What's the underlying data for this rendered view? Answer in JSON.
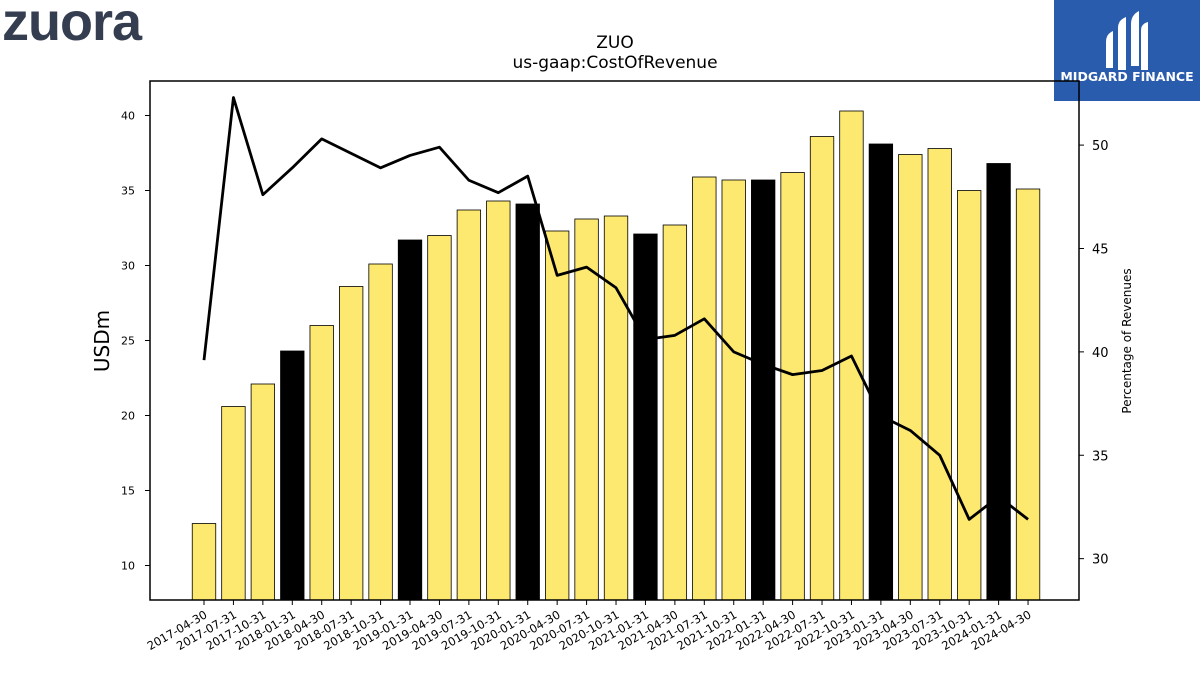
{
  "logo": {
    "text": "zuora",
    "color": "#343e50"
  },
  "brand": {
    "name": "MIDGARD FINANCE",
    "background": "#2a5cad",
    "icon": "midgard-m-icon"
  },
  "colors": {
    "bar_quarter": "#fde970",
    "bar_year_end": "#000000",
    "line": "#000000",
    "edge": "#000000"
  },
  "chart_data": {
    "type": "bar",
    "title": "ZUO",
    "subtitle": "us-gaap:CostOfRevenue",
    "ylabel": "USDm",
    "y2label": "Percentage of Revenues",
    "ylim": [
      7.7,
      42.3
    ],
    "y2lim": [
      28.0,
      53.1
    ],
    "yticks": [
      10,
      15,
      20,
      25,
      30,
      35,
      40
    ],
    "y2ticks": [
      30,
      35,
      40,
      45,
      50
    ],
    "grid": false,
    "categories": [
      "2017-04-30",
      "2017-07-31",
      "2017-10-31",
      "2018-01-31",
      "2018-04-30",
      "2018-07-31",
      "2018-10-31",
      "2019-01-31",
      "2019-04-30",
      "2019-07-31",
      "2019-10-31",
      "2020-01-31",
      "2020-04-30",
      "2020-07-31",
      "2020-10-31",
      "2021-01-31",
      "2021-04-30",
      "2021-07-31",
      "2021-10-31",
      "2022-01-31",
      "2022-04-30",
      "2022-07-31",
      "2022-10-31",
      "2023-01-31",
      "2023-04-30",
      "2023-07-31",
      "2023-10-31",
      "2024-01-31",
      "2024-04-30"
    ],
    "values": [
      12.8,
      20.6,
      22.1,
      24.3,
      26.0,
      28.6,
      30.1,
      31.7,
      32.0,
      33.7,
      34.3,
      34.1,
      32.3,
      33.1,
      33.3,
      32.1,
      32.7,
      35.9,
      35.7,
      35.7,
      36.2,
      38.6,
      40.3,
      38.1,
      37.4,
      37.8,
      35.0,
      36.8,
      35.1
    ],
    "year_end": [
      false,
      false,
      false,
      true,
      false,
      false,
      false,
      true,
      false,
      false,
      false,
      true,
      false,
      false,
      false,
      true,
      false,
      false,
      false,
      true,
      false,
      false,
      false,
      true,
      false,
      false,
      false,
      true,
      false
    ],
    "series": [
      {
        "axis": "right",
        "type": "line",
        "values": [
          39.6,
          52.3,
          47.6,
          48.9,
          50.3,
          49.6,
          48.9,
          49.5,
          49.9,
          48.3,
          47.7,
          48.5,
          43.7,
          44.1,
          43.1,
          40.6,
          40.8,
          41.6,
          40.0,
          39.4,
          38.9,
          39.1,
          39.8,
          36.9,
          36.2,
          35.0,
          31.9,
          33.0,
          31.9
        ]
      }
    ]
  }
}
